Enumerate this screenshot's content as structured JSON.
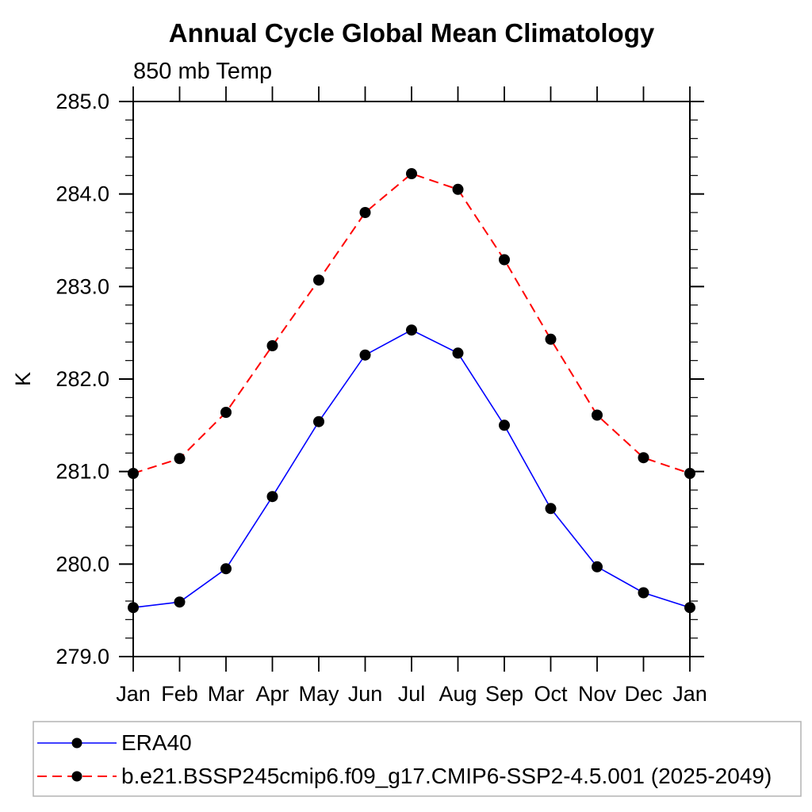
{
  "page": {
    "background": "#ffffff"
  },
  "chart_data": {
    "type": "line",
    "title": "Annual Cycle Global Mean Climatology",
    "subtitle": "850 mb Temp",
    "ylabel": "K",
    "xlabel": "",
    "ylim": [
      279.0,
      285.0
    ],
    "y_major_step": 1.0,
    "y_minor_step": 0.2,
    "y_tick_labels": [
      "279.0",
      "280.0",
      "281.0",
      "282.0",
      "283.0",
      "284.0",
      "285.0"
    ],
    "x": [
      "Jan",
      "Feb",
      "Mar",
      "Apr",
      "May",
      "Jun",
      "Jul",
      "Aug",
      "Sep",
      "Oct",
      "Nov",
      "Dec",
      "Jan"
    ],
    "grid": false,
    "frame_color": "#000000",
    "legend_position": "bottom-left-box",
    "series": [
      {
        "name": "ERA40",
        "color": "#0000ff",
        "line_style": "solid",
        "marker": "filled-circle",
        "marker_color": "#000000",
        "values": [
          279.53,
          279.59,
          279.95,
          280.73,
          281.54,
          282.26,
          282.53,
          282.28,
          281.5,
          280.6,
          279.97,
          279.69,
          279.53
        ]
      },
      {
        "name": "b.e21.BSSP245cmip6.f09_g17.CMIP6-SSP2-4.5.001 (2025-2049)",
        "color": "#ff0000",
        "line_style": "dashed",
        "marker": "filled-circle",
        "marker_color": "#000000",
        "values": [
          280.98,
          281.14,
          281.64,
          282.36,
          283.07,
          283.8,
          284.22,
          284.05,
          283.29,
          282.43,
          281.61,
          281.15,
          280.98
        ]
      }
    ]
  }
}
